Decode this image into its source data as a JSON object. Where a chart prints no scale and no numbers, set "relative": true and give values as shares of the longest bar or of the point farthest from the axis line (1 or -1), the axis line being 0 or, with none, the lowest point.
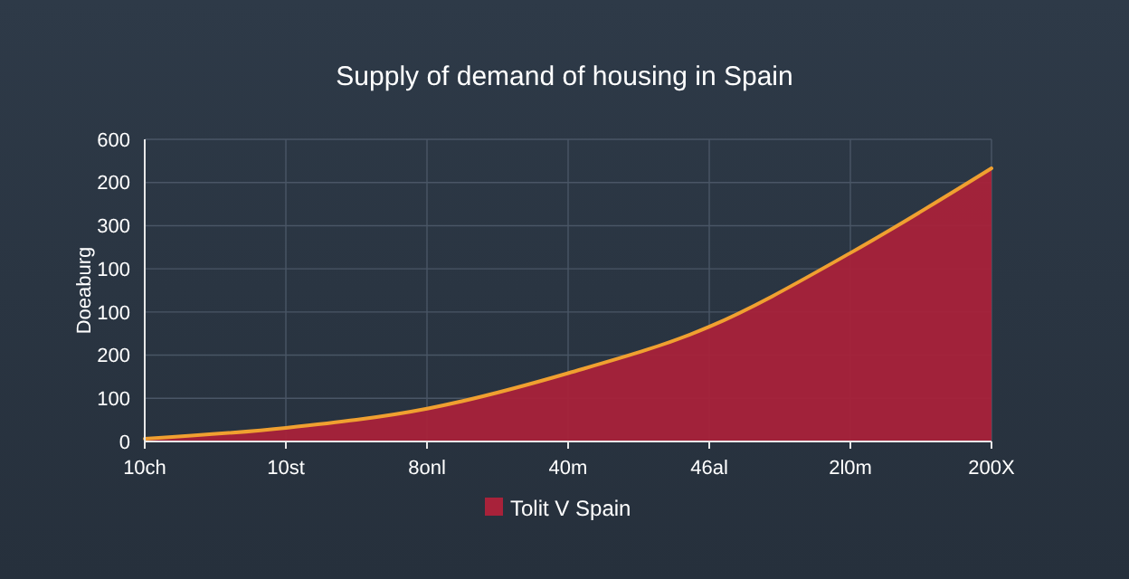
{
  "chart_data": {
    "type": "area",
    "title": "Supply of demand of housing in Spain",
    "ylabel": "Doeaburg",
    "categories": [
      "10ch",
      "10st",
      "8onl",
      "40m",
      "46al",
      "2l0m",
      "200X"
    ],
    "series": [
      {
        "name": "Tolit V Spain",
        "color": "#a8223a",
        "values": [
          0.01,
          0.05,
          0.12,
          0.25,
          0.42,
          0.69,
          1
        ]
      }
    ],
    "relative": true,
    "annotations": [
      "0",
      "100",
      "200",
      "100",
      "100",
      "300",
      "200",
      "600"
    ],
    "grid": true,
    "legend": "bottom"
  }
}
